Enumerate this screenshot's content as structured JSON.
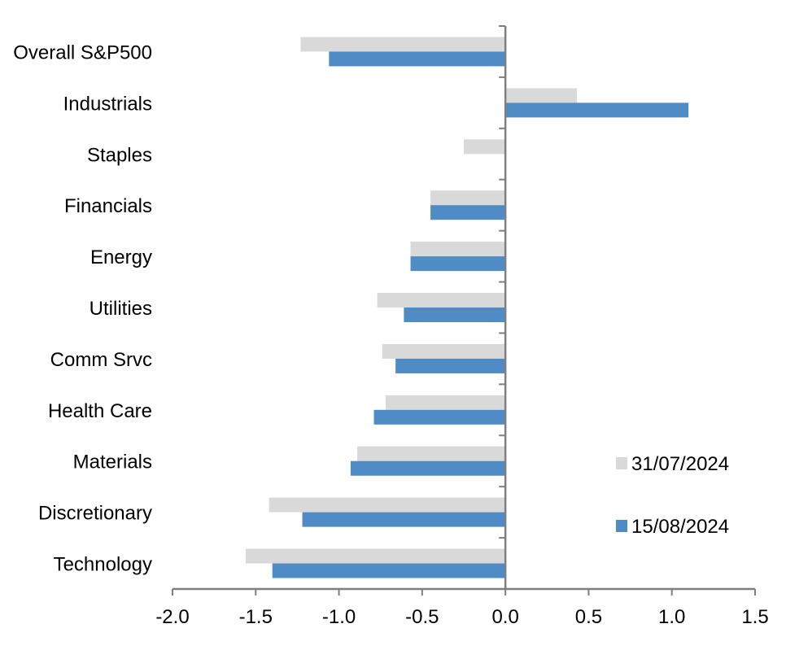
{
  "chart_data": {
    "type": "bar",
    "orientation": "horizontal",
    "categories": [
      "Overall S&P500",
      "Industrials",
      "Staples",
      "Financials",
      "Energy",
      "Utilities",
      "Comm Srvc",
      "Health Care",
      "Materials",
      "Discretionary",
      "Technology"
    ],
    "series": [
      {
        "name": "31/07/2024",
        "color": "#d9d9d9",
        "values": [
          -1.23,
          0.43,
          -0.25,
          -0.45,
          -0.57,
          -0.77,
          -0.74,
          -0.72,
          -0.89,
          -1.42,
          -1.56
        ]
      },
      {
        "name": "15/08/2024",
        "color": "#4f8bc4",
        "values": [
          -1.06,
          1.1,
          0.0,
          -0.45,
          -0.57,
          -0.61,
          -0.66,
          -0.79,
          -0.93,
          -1.22,
          -1.4
        ]
      }
    ],
    "xlim": [
      -2.0,
      1.5
    ],
    "xticks": [
      "-2.0",
      "-1.5",
      "-1.0",
      "-0.5",
      "0.0",
      "0.5",
      "1.0",
      "1.5"
    ],
    "grid": false,
    "legend_placement": "bottom-right",
    "axis_color": "#7f7f7f"
  }
}
